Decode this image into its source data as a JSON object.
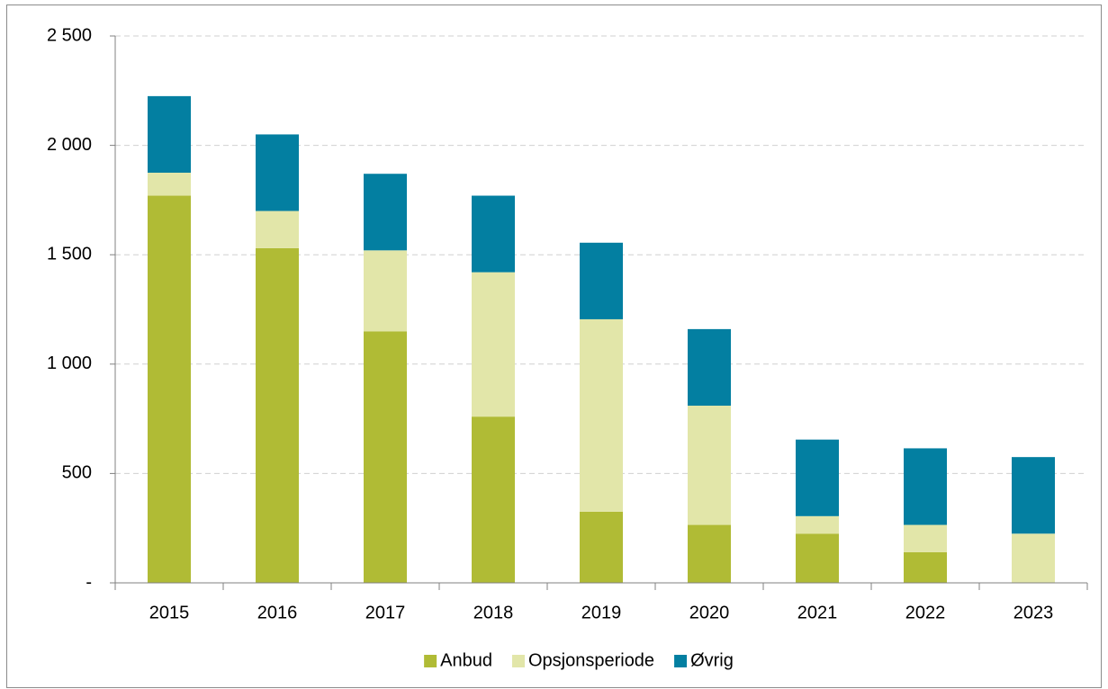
{
  "chart_data": {
    "type": "stacked_bar",
    "categories": [
      "2015",
      "2016",
      "2017",
      "2018",
      "2019",
      "2020",
      "2021",
      "2022",
      "2023"
    ],
    "series": [
      {
        "name": "Anbud",
        "color": "#b0bb35",
        "values": [
          1770,
          1530,
          1150,
          760,
          325,
          265,
          225,
          140,
          0
        ]
      },
      {
        "name": "Opsjonsperiode",
        "color": "#e2e6a9",
        "values": [
          105,
          170,
          370,
          660,
          880,
          545,
          80,
          125,
          225
        ]
      },
      {
        "name": "Øvrig",
        "color": "#037fa1",
        "values": [
          350,
          350,
          350,
          350,
          350,
          350,
          350,
          350,
          350
        ]
      }
    ],
    "ylim": [
      0,
      2500
    ],
    "yticks": [
      {
        "value": 0,
        "label": "-"
      },
      500,
      {
        "value": 1000,
        "label": "1 000"
      },
      {
        "value": 1500,
        "label": "1 500"
      },
      {
        "value": 2000,
        "label": "2 000"
      },
      {
        "value": 2500,
        "label": "2 500"
      }
    ],
    "grid": true,
    "legend": "bottom"
  }
}
